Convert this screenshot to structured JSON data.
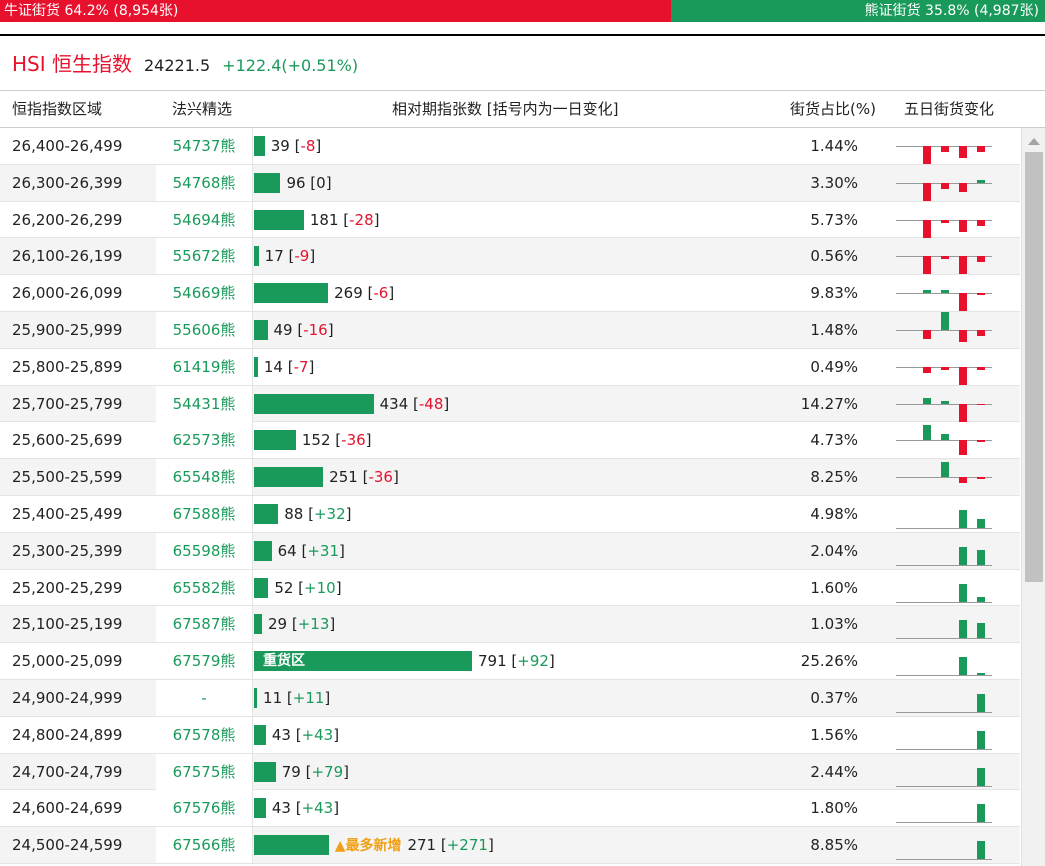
{
  "ratio": {
    "bull_label": "牛证街货 64.2% (8,954张)",
    "bear_label": "熊证街货 35.8% (4,987张)",
    "bull_share": 0.642
  },
  "index": {
    "name": "HSI 恒生指数",
    "price": "24221.5",
    "change": "+122.4(+0.51%)"
  },
  "columns": {
    "range": "恒指指数区域",
    "code": "法兴精选",
    "bar": "相对期指张数 [括号内为一日变化]",
    "pct": "街货占比(%)",
    "five_day": "五日街货变化"
  },
  "colors": {
    "bull": "#e8112d",
    "bear": "#1a9a5a",
    "highlight": "#f0a018"
  },
  "rows": [
    {
      "range": "26,400-26,499",
      "code": "54737熊",
      "value": 39,
      "change": "-8",
      "pct": "1.44%",
      "spark": [
        0,
        -3,
        -1,
        -2,
        -1
      ]
    },
    {
      "range": "26,300-26,399",
      "code": "54768熊",
      "value": 96,
      "change": "0",
      "pct": "3.30%",
      "spark": [
        0,
        -3,
        -1,
        -1.5,
        0.5
      ]
    },
    {
      "range": "26,200-26,299",
      "code": "54694熊",
      "value": 181,
      "change": "-28",
      "pct": "5.73%",
      "spark": [
        0,
        -3,
        -0.5,
        -2,
        -1
      ]
    },
    {
      "range": "26,100-26,199",
      "code": "55672熊",
      "value": 17,
      "change": "-9",
      "pct": "0.56%",
      "spark": [
        0,
        -3,
        -0.5,
        -3,
        -1
      ]
    },
    {
      "range": "26,000-26,099",
      "code": "54669熊",
      "value": 269,
      "change": "-6",
      "pct": "9.83%",
      "spark": [
        0,
        0.5,
        0.5,
        -3,
        -0.3
      ]
    },
    {
      "range": "25,900-25,999",
      "code": "55606熊",
      "value": 49,
      "change": "-16",
      "pct": "1.48%",
      "spark": [
        0,
        -1.5,
        3,
        -2,
        -1
      ]
    },
    {
      "range": "25,800-25,899",
      "code": "61419熊",
      "value": 14,
      "change": "-7",
      "pct": "0.49%",
      "spark": [
        0,
        -1,
        -0.5,
        -3,
        -0.5
      ]
    },
    {
      "range": "25,700-25,799",
      "code": "54431熊",
      "value": 434,
      "change": "-48",
      "pct": "14.27%",
      "spark": [
        0,
        1,
        0.5,
        -3,
        -0.3
      ]
    },
    {
      "range": "25,600-25,699",
      "code": "62573熊",
      "value": 152,
      "change": "-36",
      "pct": "4.73%",
      "spark": [
        0,
        2.5,
        1,
        -2.5,
        -0.3
      ]
    },
    {
      "range": "25,500-25,599",
      "code": "65548熊",
      "value": 251,
      "change": "-36",
      "pct": "8.25%",
      "spark": [
        0,
        0,
        2.5,
        -1,
        -0.3
      ]
    },
    {
      "range": "25,400-25,499",
      "code": "67588熊",
      "value": 88,
      "change": "+32",
      "pct": "4.98%",
      "spark": [
        0,
        0,
        0,
        3,
        1.5
      ]
    },
    {
      "range": "25,300-25,399",
      "code": "65598熊",
      "value": 64,
      "change": "+31",
      "pct": "2.04%",
      "spark": [
        0,
        0,
        0,
        3,
        2.5
      ]
    },
    {
      "range": "25,200-25,299",
      "code": "65582熊",
      "value": 52,
      "change": "+10",
      "pct": "1.60%",
      "spark": [
        0,
        0,
        0,
        3,
        0.8
      ]
    },
    {
      "range": "25,100-25,199",
      "code": "67587熊",
      "value": 29,
      "change": "+13",
      "pct": "1.03%",
      "spark": [
        0,
        0,
        0,
        3,
        2.5
      ]
    },
    {
      "range": "25,000-25,099",
      "code": "67579熊",
      "value": 791,
      "change": "+92",
      "pct": "25.26%",
      "spark": [
        0,
        0,
        0,
        3,
        0.3
      ],
      "inlabel": "重货区"
    },
    {
      "range": "24,900-24,999",
      "code": "-",
      "value": 11,
      "change": "+11",
      "pct": "0.37%",
      "spark": [
        0,
        0,
        0,
        0,
        3
      ]
    },
    {
      "range": "24,800-24,899",
      "code": "67578熊",
      "value": 43,
      "change": "+43",
      "pct": "1.56%",
      "spark": [
        0,
        0,
        0,
        0,
        3
      ]
    },
    {
      "range": "24,700-24,799",
      "code": "67575熊",
      "value": 79,
      "change": "+79",
      "pct": "2.44%",
      "spark": [
        0,
        0,
        0,
        0,
        3
      ]
    },
    {
      "range": "24,600-24,699",
      "code": "67576熊",
      "value": 43,
      "change": "+43",
      "pct": "1.80%",
      "spark": [
        0,
        0,
        0,
        0,
        3
      ]
    },
    {
      "range": "24,500-24,599",
      "code": "67566熊",
      "value": 271,
      "change": "+271",
      "pct": "8.85%",
      "spark": [
        0,
        0,
        0,
        0,
        3
      ],
      "note": "最多新增"
    }
  ],
  "max_value": 791
}
